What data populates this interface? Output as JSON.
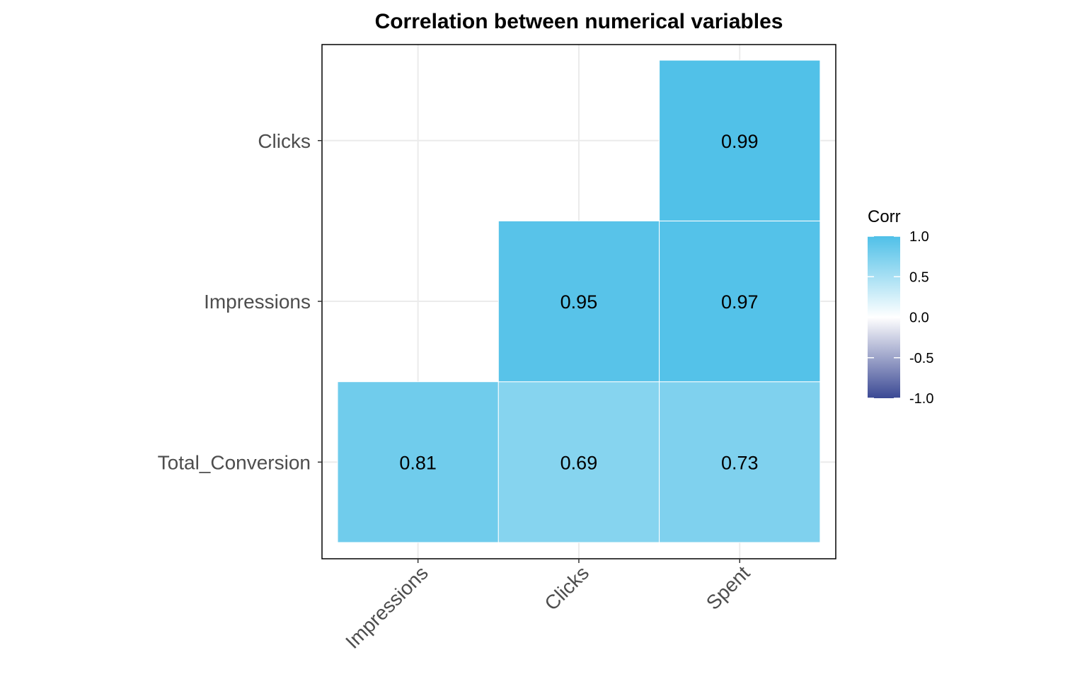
{
  "chart_data": {
    "type": "heatmap",
    "title": "Correlation between numerical variables",
    "xlabel": "",
    "ylabel": "",
    "x_categories": [
      "Impressions",
      "Clicks",
      "Spent"
    ],
    "y_categories": [
      "Total_Conversion",
      "Impressions",
      "Clicks"
    ],
    "cells": [
      {
        "x": "Impressions",
        "y": "Total_Conversion",
        "value": 0.81,
        "label": "0.81"
      },
      {
        "x": "Clicks",
        "y": "Total_Conversion",
        "value": 0.69,
        "label": "0.69"
      },
      {
        "x": "Spent",
        "y": "Total_Conversion",
        "value": 0.73,
        "label": "0.73"
      },
      {
        "x": "Clicks",
        "y": "Impressions",
        "value": 0.95,
        "label": "0.95"
      },
      {
        "x": "Spent",
        "y": "Impressions",
        "value": 0.97,
        "label": "0.97"
      },
      {
        "x": "Spent",
        "y": "Clicks",
        "value": 0.99,
        "label": "0.99"
      }
    ],
    "legend": {
      "title": "Corr",
      "placement": "right",
      "range": [
        -1.0,
        1.0
      ],
      "ticks": [
        1.0,
        0.5,
        0.0,
        -0.5,
        -1.0
      ],
      "tick_labels": [
        "1.0",
        "0.5",
        "0.0",
        "-0.5",
        "-1.0"
      ]
    },
    "colors": {
      "low": "#3b4994",
      "mid": "#ffffff",
      "high": "#4fc0e8"
    },
    "grid": true,
    "panel_border": true
  }
}
